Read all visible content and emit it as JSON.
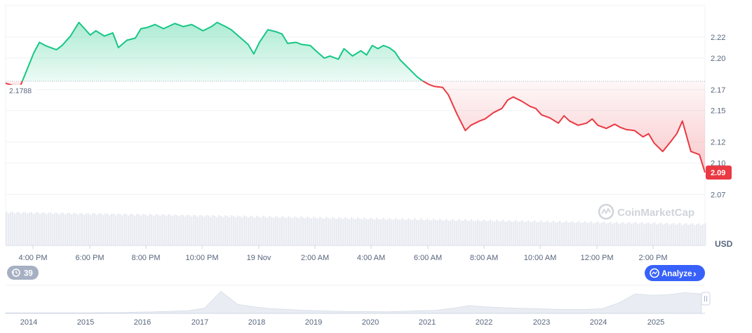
{
  "chart_data": {
    "type": "line",
    "title": "",
    "xlabel": "",
    "ylabel": "",
    "currency_label": "USD",
    "baseline": {
      "value": 2.178,
      "label": "2.1788"
    },
    "current_price_label": "2.09",
    "ylim": [
      2.055,
      2.25
    ],
    "y_ticks": [
      {
        "value": 2.22,
        "label": "2.22"
      },
      {
        "value": 2.2,
        "label": "2.20"
      },
      {
        "value": 2.17,
        "label": "2.17"
      },
      {
        "value": 2.15,
        "label": "2.15"
      },
      {
        "value": 2.12,
        "label": "2.12"
      },
      {
        "value": 2.1,
        "label": "2.10"
      },
      {
        "value": 2.07,
        "label": "2.07"
      }
    ],
    "x_ticks": [
      "4:00 PM",
      "6:00 PM",
      "8:00 PM",
      "10:00 PM",
      "19 Nov",
      "2:00 AM",
      "4:00 AM",
      "6:00 AM",
      "8:00 AM",
      "10:00 AM",
      "12:00 PM",
      "2:00 PM"
    ],
    "series": [
      {
        "x": [
          0,
          0.5,
          0.7,
          1.0,
          1.2,
          1.4,
          1.6,
          1.8,
          2.0,
          2.3,
          2.6,
          3.0,
          3.2,
          3.5,
          3.8,
          4.0,
          4.3,
          4.6,
          4.8,
          5.0,
          5.3,
          5.6,
          6.0,
          6.3,
          6.6,
          7.0,
          7.3,
          7.5,
          7.8,
          8.0,
          8.3,
          8.6,
          8.8,
          9.0,
          9.3,
          9.6,
          9.8,
          10.0,
          10.3,
          10.5,
          10.8,
          11.0,
          11.3,
          11.5,
          11.8,
          12.0,
          12.3,
          12.6,
          12.8,
          13.0,
          13.2,
          13.4,
          13.6,
          13.8,
          14.0,
          14.3,
          14.6,
          14.8,
          15.0,
          15.2,
          15.5,
          15.7,
          16.0,
          16.3,
          16.5,
          16.8,
          17.0,
          17.3,
          17.6,
          17.8,
          18.0,
          18.3,
          18.6,
          18.8,
          19.0,
          19.3,
          19.6,
          19.8,
          20.0,
          20.3,
          20.6,
          20.8,
          21.0,
          21.3,
          21.6,
          21.8,
          22.0,
          22.3,
          22.6,
          22.8,
          23.0,
          23.3,
          23.6,
          23.8,
          24.0,
          24.3,
          24.6,
          24.8
        ],
        "y": [
          2.176,
          2.172,
          2.185,
          2.205,
          2.215,
          2.212,
          2.21,
          2.208,
          2.212,
          2.221,
          2.234,
          2.222,
          2.226,
          2.221,
          2.224,
          2.21,
          2.217,
          2.219,
          2.228,
          2.229,
          2.232,
          2.228,
          2.233,
          2.23,
          2.232,
          2.226,
          2.23,
          2.234,
          2.23,
          2.227,
          2.22,
          2.213,
          2.204,
          2.215,
          2.227,
          2.225,
          2.223,
          2.214,
          2.215,
          2.213,
          2.212,
          2.207,
          2.2,
          2.202,
          2.199,
          2.209,
          2.202,
          2.207,
          2.203,
          2.212,
          2.209,
          2.212,
          2.21,
          2.206,
          2.198,
          2.19,
          2.182,
          2.178,
          2.175,
          2.173,
          2.172,
          2.165,
          2.147,
          2.131,
          2.136,
          2.14,
          2.142,
          2.148,
          2.152,
          2.16,
          2.163,
          2.159,
          2.154,
          2.152,
          2.146,
          2.143,
          2.138,
          2.145,
          2.14,
          2.136,
          2.138,
          2.142,
          2.136,
          2.133,
          2.137,
          2.134,
          2.132,
          2.131,
          2.125,
          2.128,
          2.119,
          2.111,
          2.121,
          2.128,
          2.14,
          2.111,
          2.108,
          2.091
        ]
      }
    ],
    "overview": {
      "x_ticks": [
        "2014",
        "2015",
        "2016",
        "2017",
        "2018",
        "2019",
        "2020",
        "2021",
        "2022",
        "2023",
        "2024",
        "2025"
      ],
      "values": [
        0.02,
        0.02,
        0.02,
        0.02,
        0.02,
        0.02,
        0.03,
        0.03,
        0.05,
        0.06,
        0.08,
        0.1,
        0.2,
        0.85,
        0.35,
        0.25,
        0.18,
        0.15,
        0.12,
        0.1,
        0.08,
        0.07,
        0.07,
        0.06,
        0.08,
        0.1,
        0.12,
        0.2,
        0.3,
        0.25,
        0.22,
        0.2,
        0.18,
        0.16,
        0.15,
        0.15,
        0.18,
        0.4,
        0.75,
        0.7,
        0.72,
        0.8,
        0.75
      ]
    }
  },
  "watermark": "CoinMarketCap",
  "ui": {
    "history_count": "39",
    "analyze_label": "Analyze",
    "analyze_chevron": "›"
  },
  "colors": {
    "up": "#16c784",
    "down": "#ea3943",
    "analyze_bg": "#3861fb",
    "axis_text": "#58667e",
    "grid": "#eff2f5"
  },
  "icons": {
    "history": "history-icon",
    "analyze": "analyze-icon",
    "overview_handle": "overview-handle-icon"
  }
}
